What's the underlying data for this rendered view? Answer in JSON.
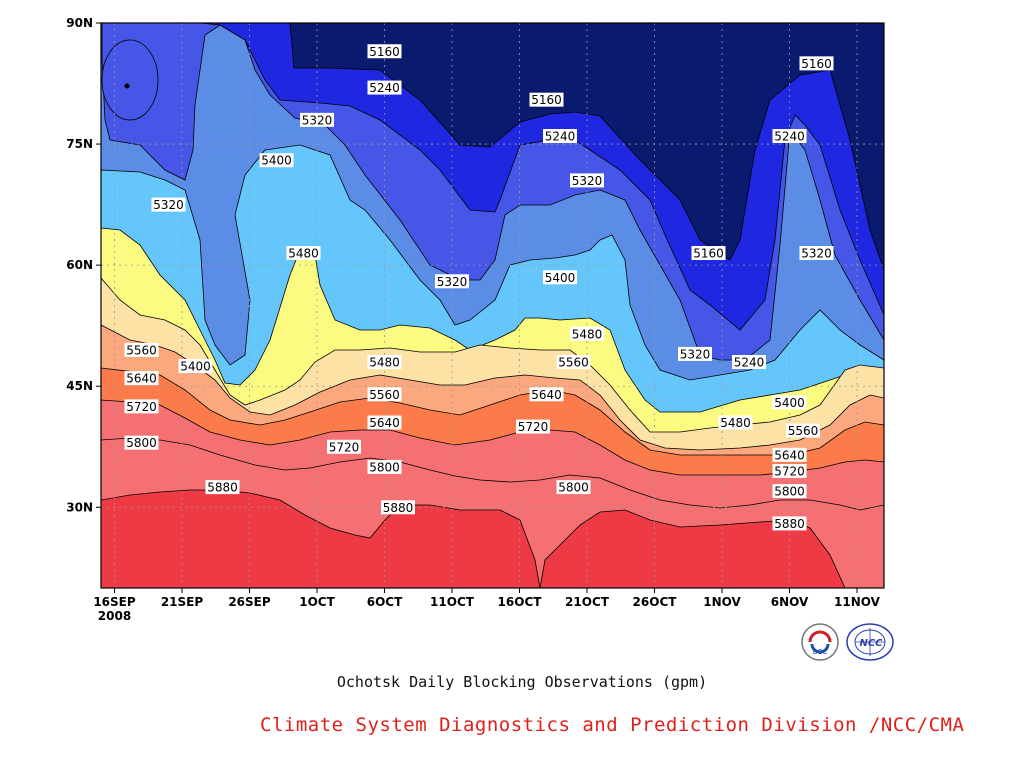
{
  "chart_data": {
    "type": "contour",
    "title": "Ochotsk Daily Blocking Observations (gpm)",
    "x_axis": {
      "ticks": [
        "16SEP",
        "21SEP",
        "26SEP",
        "1OCT",
        "6OCT",
        "11OCT",
        "16OCT",
        "21OCT",
        "26OCT",
        "1NOV",
        "6NOV",
        "11NOV"
      ],
      "year_label": "2008",
      "range": [
        "2008-09-15",
        "2008-11-12"
      ]
    },
    "y_axis": {
      "ticks": [
        "30N",
        "45N",
        "60N",
        "75N",
        "90N"
      ],
      "range": [
        20,
        90
      ],
      "unit": "degrees N"
    },
    "grid": true,
    "contour_levels": [
      5160,
      5240,
      5320,
      5400,
      5480,
      5560,
      5640,
      5720,
      5800,
      5880
    ],
    "level_colors": {
      "below_5160": "#0a1a6e",
      "5160_5240": "#1f27e0",
      "5240_5320": "#4657e8",
      "5320_5400": "#5b8de6",
      "5400_5480": "#64c6fb",
      "5480_5560": "#fbfb82",
      "5560_5640": "#fde2a5",
      "5640_5720": "#fca87e",
      "5720_5800": "#fb7c4a",
      "5800_5880": "#f47073",
      "above_5880": "#ee3a44"
    },
    "contour_labels": [
      {
        "value": 5160,
        "date": "2008-10-06",
        "lat": 86.5
      },
      {
        "value": 5240,
        "date": "2008-10-06",
        "lat": 82
      },
      {
        "value": 5320,
        "date": "2008-10-01",
        "lat": 78
      },
      {
        "value": 5400,
        "date": "2008-09-28",
        "lat": 73
      },
      {
        "value": 5320,
        "date": "2008-09-20",
        "lat": 67.5
      },
      {
        "value": 5480,
        "date": "2008-09-30",
        "lat": 61.5
      },
      {
        "value": 5320,
        "date": "2008-10-11",
        "lat": 58
      },
      {
        "value": 5160,
        "date": "2008-10-18",
        "lat": 80.5
      },
      {
        "value": 5240,
        "date": "2008-10-19",
        "lat": 76
      },
      {
        "value": 5320,
        "date": "2008-10-21",
        "lat": 70.5
      },
      {
        "value": 5400,
        "date": "2008-10-19",
        "lat": 58.5
      },
      {
        "value": 5480,
        "date": "2008-10-21",
        "lat": 51.5
      },
      {
        "value": 5560,
        "date": "2008-10-20",
        "lat": 48
      },
      {
        "value": 5640,
        "date": "2008-10-18",
        "lat": 44
      },
      {
        "value": 5720,
        "date": "2008-10-17",
        "lat": 40
      },
      {
        "value": 5800,
        "date": "2008-10-20",
        "lat": 32.5
      },
      {
        "value": 5880,
        "date": "2008-10-07",
        "lat": 30
      },
      {
        "value": 5800,
        "date": "2008-10-06",
        "lat": 35
      },
      {
        "value": 5720,
        "date": "2008-10-03",
        "lat": 37.5
      },
      {
        "value": 5640,
        "date": "2008-10-06",
        "lat": 40.5
      },
      {
        "value": 5560,
        "date": "2008-10-06",
        "lat": 44
      },
      {
        "value": 5480,
        "date": "2008-10-06",
        "lat": 48
      },
      {
        "value": 5880,
        "date": "2008-09-24",
        "lat": 32.5
      },
      {
        "value": 5800,
        "date": "2008-09-18",
        "lat": 38
      },
      {
        "value": 5720,
        "date": "2008-09-18",
        "lat": 42.5
      },
      {
        "value": 5640,
        "date": "2008-09-18",
        "lat": 46
      },
      {
        "value": 5560,
        "date": "2008-09-18",
        "lat": 49.5
      },
      {
        "value": 5400,
        "date": "2008-09-22",
        "lat": 47.5
      },
      {
        "value": 5160,
        "date": "2008-10-30",
        "lat": 61.5
      },
      {
        "value": 5320,
        "date": "2008-10-29",
        "lat": 49
      },
      {
        "value": 5240,
        "date": "2008-11-02",
        "lat": 48
      },
      {
        "value": 5240,
        "date": "2008-11-05",
        "lat": 76
      },
      {
        "value": 5160,
        "date": "2008-11-07",
        "lat": 85
      },
      {
        "value": 5320,
        "date": "2008-11-07",
        "lat": 61.5
      },
      {
        "value": 5400,
        "date": "2008-11-05",
        "lat": 43
      },
      {
        "value": 5480,
        "date": "2008-11-01",
        "lat": 40.5
      },
      {
        "value": 5560,
        "date": "2008-11-06",
        "lat": 39.5
      },
      {
        "value": 5640,
        "date": "2008-11-05",
        "lat": 36.5
      },
      {
        "value": 5720,
        "date": "2008-11-05",
        "lat": 34.5
      },
      {
        "value": 5800,
        "date": "2008-11-05",
        "lat": 32
      },
      {
        "value": 5880,
        "date": "2008-11-05",
        "lat": 28
      }
    ]
  },
  "footer": {
    "title": "Ochotsk Daily Blocking Observations (gpm)",
    "credit": "Climate System Diagnostics and Prediction Division /NCC/CMA"
  },
  "logos": [
    {
      "name": "bcc-logo",
      "text": "BCC"
    },
    {
      "name": "ncc-logo",
      "text": "NCC"
    }
  ]
}
